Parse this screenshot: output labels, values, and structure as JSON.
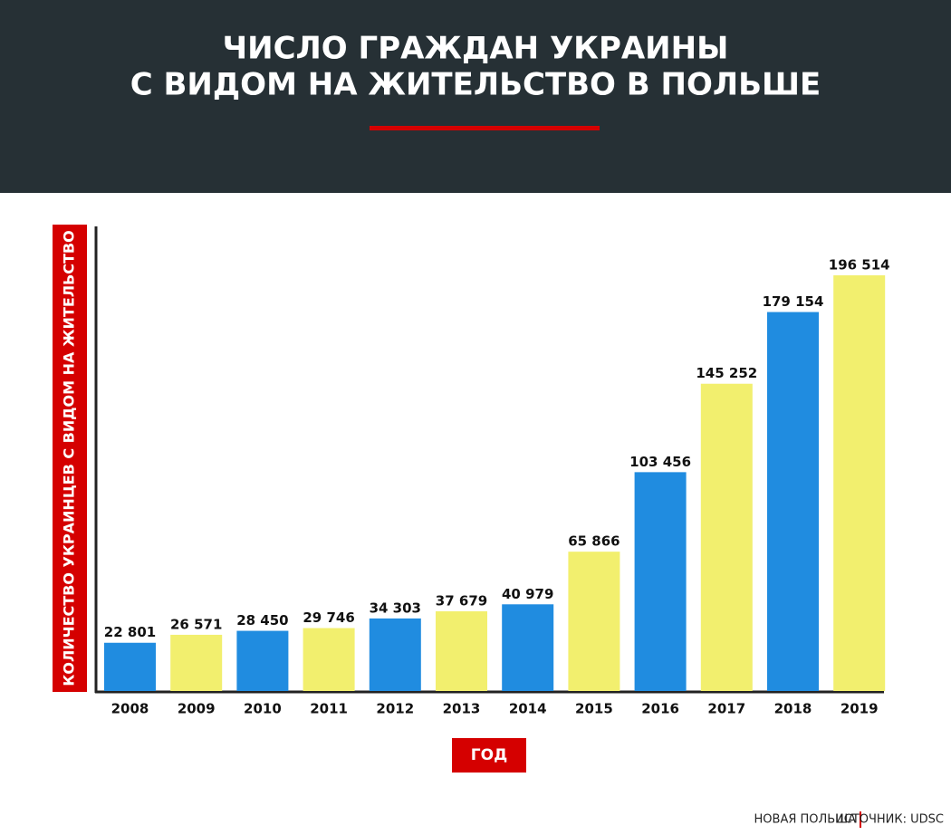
{
  "chart_data": {
    "type": "bar",
    "title": [
      "ЧИСЛО ГРАЖДАН УКРАИНЫ",
      "С ВИДОМ НА ЖИТЕЛЬСТВО В ПОЛЬШЕ"
    ],
    "y_label": "КОЛИЧЕСТВО УКРАИНЦЕВ С ВИДОМ НА ЖИТЕЛЬСТВО",
    "x_label": "ГОД",
    "categories": [
      "2008",
      "2009",
      "2010",
      "2011",
      "2012",
      "2013",
      "2014",
      "2015",
      "2016",
      "2017",
      "2018",
      "2019"
    ],
    "values": [
      22801,
      26571,
      28450,
      29746,
      34303,
      37679,
      40979,
      65866,
      103456,
      145252,
      179154,
      196514
    ],
    "value_labels": [
      "22 801",
      "26 571",
      "28 450",
      "29 746",
      "34 303",
      "37 679",
      "40 979",
      "65 866",
      "103 456",
      "145 252",
      "179 154",
      "196 514"
    ],
    "colors": [
      "#208ce0",
      "#f2ef6e",
      "#208ce0",
      "#f2ef6e",
      "#208ce0",
      "#f2ef6e",
      "#208ce0",
      "#f2ef6e",
      "#208ce0",
      "#f2ef6e",
      "#208ce0",
      "#f2ef6e"
    ]
  },
  "footer": {
    "publisher": "НОВАЯ ПОЛЬША",
    "source": "ИСТОЧНИК: UDSC"
  }
}
